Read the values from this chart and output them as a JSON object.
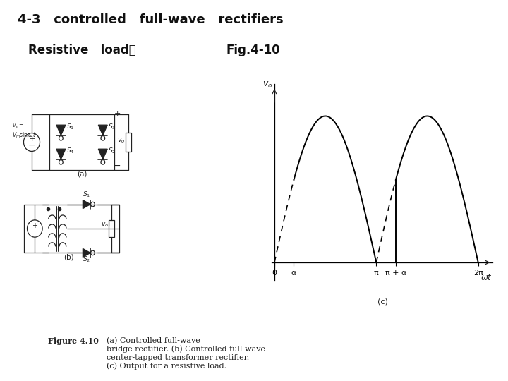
{
  "title_line": "4-3   controlled   full-wave   rectifiers",
  "subtitle": "Resistive   load：",
  "fig_label": "Fig.4-10",
  "caption_bold": "Figure 4.10",
  "caption_text_1": "(a) Controlled full-wave",
  "caption_text_2": "bridge rectifier. (b) Controlled full-wave",
  "caption_text_3": "center-tapped transformer rectifier.",
  "caption_text_4": "(c) Output for a resistive load.",
  "alpha_val": 0.6,
  "background": "#ffffff",
  "subfig_label_c": "(c)",
  "subfig_label_a": "(a)",
  "subfig_label_b": "(b)"
}
